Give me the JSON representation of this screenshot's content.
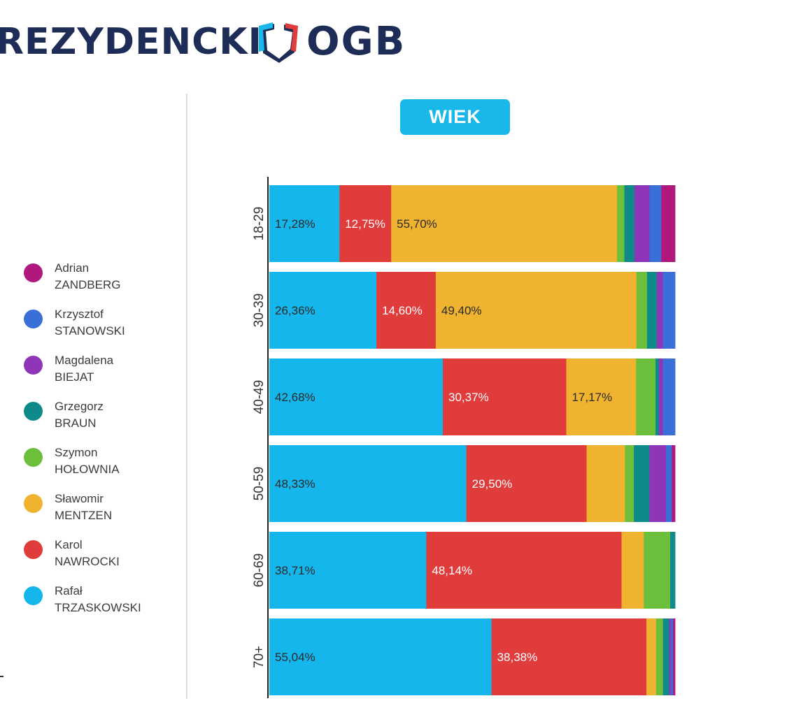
{
  "header": {
    "title": "REZYDENCKI",
    "logo_text": "OGB"
  },
  "badge": "WIEK",
  "legend": [
    {
      "first": "Adrian",
      "last": "ZANDBERG",
      "color": "#b0187e"
    },
    {
      "first": "Krzysztof",
      "last": "STANOWSKI",
      "color": "#3a6fd8"
    },
    {
      "first": "Magdalena",
      "last": "BIEJAT",
      "color": "#8e35b8"
    },
    {
      "first": "Grzegorz",
      "last": "BRAUN",
      "color": "#0f8a8a"
    },
    {
      "first": "Szymon",
      "last": "HOŁOWNIA",
      "color": "#6bbf3a"
    },
    {
      "first": "Sławomir",
      "last": "MENTZEN",
      "color": "#f0b330"
    },
    {
      "first": "Karol",
      "last": "NAWROCKI",
      "color": "#e03c3c"
    },
    {
      "first": "Rafał",
      "last": "TRZASKOWSKI",
      "color": "#14b6ec"
    }
  ],
  "chart_data": {
    "type": "bar",
    "orientation": "horizontal",
    "stacked": true,
    "normalized": true,
    "title": "WIEK",
    "categories": [
      "18-29",
      "30-39",
      "40-49",
      "50-59",
      "60-69",
      "70+"
    ],
    "xlim": [
      0,
      100
    ],
    "series": [
      {
        "name": "Rafał TRZASKOWSKI",
        "color": "#14b6ec",
        "values": [
          17.28,
          26.36,
          42.68,
          48.33,
          38.71,
          55.04
        ],
        "labels": [
          "17,28%",
          "26,36%",
          "42,68%",
          "48,33%",
          "38,71%",
          "55,04%"
        ],
        "label_color": "#2a2a2a"
      },
      {
        "name": "Karol NAWROCKI",
        "color": "#e03c3c",
        "values": [
          12.75,
          14.6,
          30.37,
          29.5,
          48.14,
          38.38
        ],
        "labels": [
          "12,75%",
          "14,60%",
          "30,37%",
          "29,50%",
          "48,14%",
          "38,38%"
        ],
        "label_color": "#ffffff"
      },
      {
        "name": "Sławomir MENTZEN",
        "color": "#f0b330",
        "values": [
          55.7,
          49.4,
          17.17,
          9.4,
          5.5,
          2.4
        ],
        "labels": [
          "55,70%",
          "49,40%",
          "17,17%",
          "",
          "",
          ""
        ],
        "label_color": "#2a2a2a"
      },
      {
        "name": "Szymon HOŁOWNIA",
        "color": "#6bbf3a",
        "values": [
          1.8,
          2.6,
          4.8,
          2.2,
          6.5,
          1.7
        ],
        "labels": [
          "",
          "",
          "",
          "",
          "",
          ""
        ]
      },
      {
        "name": "Grzegorz BRAUN",
        "color": "#0f8a8a",
        "values": [
          2.5,
          2.4,
          0.8,
          3.8,
          1.2,
          1.5
        ],
        "labels": [
          "",
          "",
          "",
          "",
          "",
          ""
        ]
      },
      {
        "name": "Magdalena BIEJAT",
        "color": "#8e35b8",
        "values": [
          3.7,
          1.5,
          1.0,
          4.1,
          0,
          0.5
        ],
        "labels": [
          "",
          "",
          "",
          "",
          "",
          ""
        ]
      },
      {
        "name": "Krzysztof STANOWSKI",
        "color": "#3a6fd8",
        "values": [
          2.9,
          3.0,
          3.0,
          1.4,
          0,
          0.5
        ],
        "labels": [
          "",
          "",
          "",
          "",
          "",
          ""
        ]
      },
      {
        "name": "Adrian ZANDBERG",
        "color": "#b0187e",
        "values": [
          3.4,
          0,
          0,
          0.8,
          0,
          0.5
        ],
        "labels": [
          "",
          "",
          "",
          "",
          "",
          ""
        ]
      }
    ]
  }
}
